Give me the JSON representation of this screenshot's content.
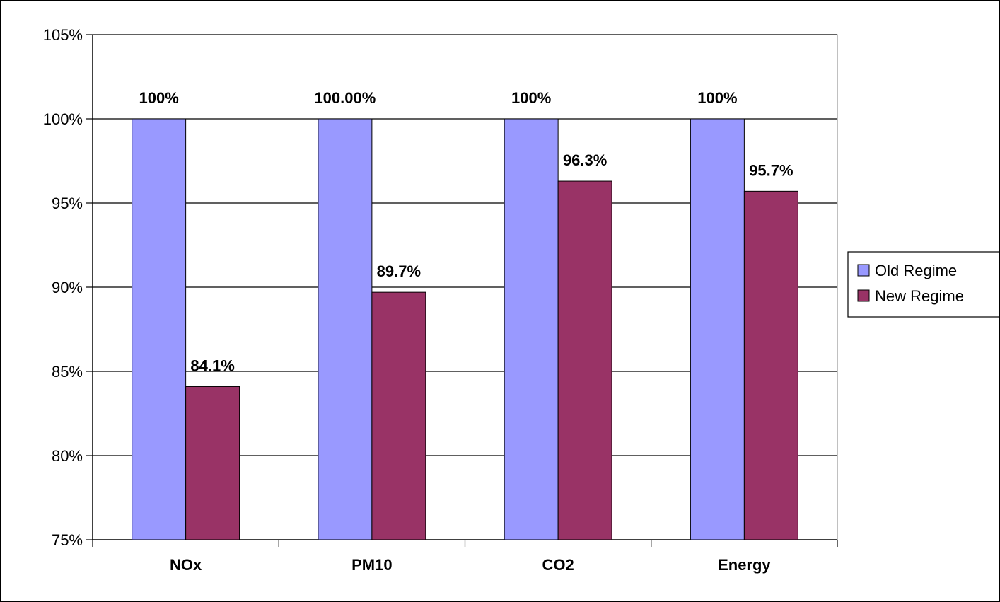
{
  "chart_data": {
    "type": "bar",
    "title": "",
    "xlabel": "",
    "ylabel": "",
    "categories": [
      "NOx",
      "PM10",
      "CO2",
      "Energy"
    ],
    "ylim": [
      75,
      105
    ],
    "yticks": [
      75,
      80,
      85,
      90,
      95,
      100,
      105
    ],
    "ytick_labels": [
      "75%",
      "80%",
      "85%",
      "90%",
      "95%",
      "100%",
      "105%"
    ],
    "grid": true,
    "legend_position": "right",
    "series": [
      {
        "name": "Old Regime",
        "color": "#9999ff",
        "values": [
          100,
          100,
          100,
          100
        ],
        "labels": [
          "100%",
          "100.00%",
          "100%",
          "100%"
        ]
      },
      {
        "name": "New Regime",
        "color": "#993366",
        "values": [
          84.1,
          89.7,
          96.3,
          95.7
        ],
        "labels": [
          "84.1%",
          "89.7%",
          "96.3%",
          "95.7%"
        ]
      }
    ]
  }
}
